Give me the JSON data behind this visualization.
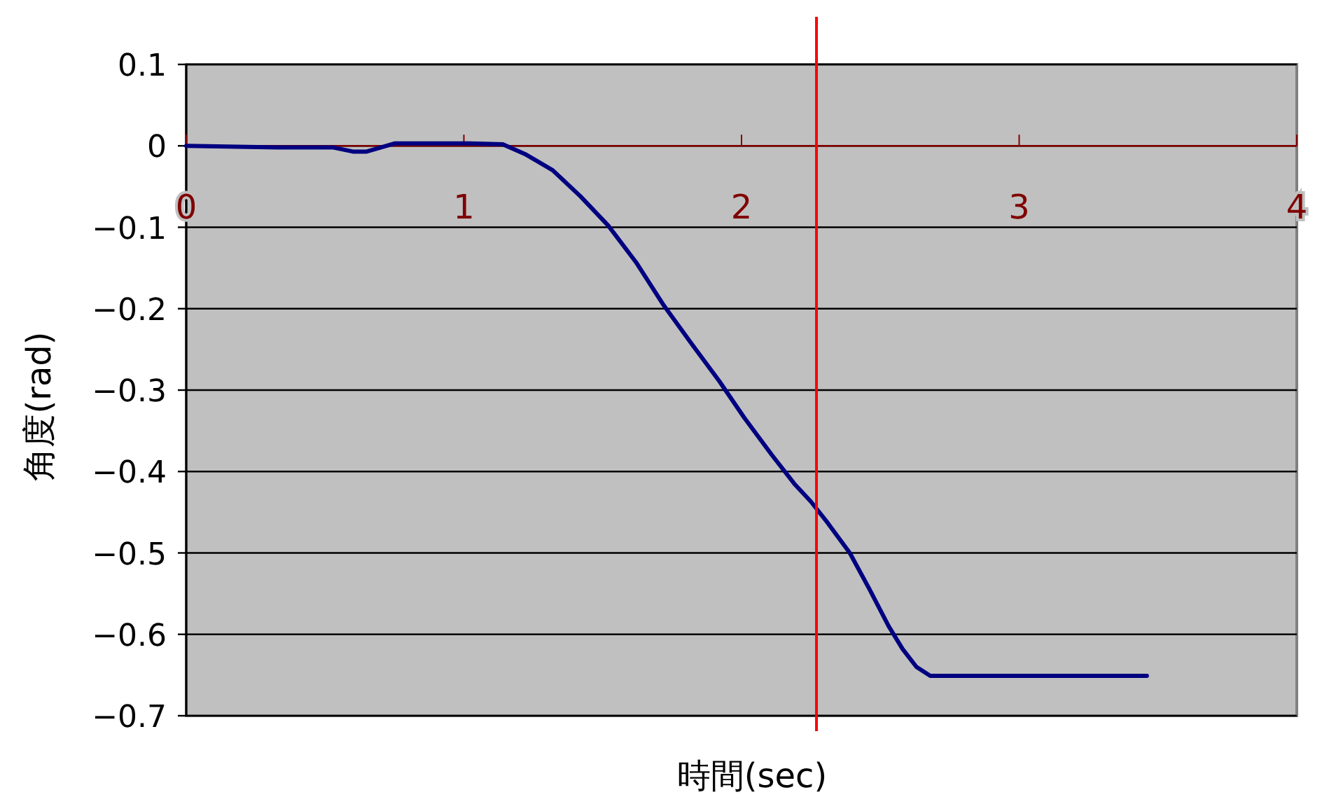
{
  "chart_data": {
    "type": "line",
    "xlabel": "時間(sec)",
    "ylabel": "角度(rad)",
    "xlim": [
      0,
      4
    ],
    "ylim": [
      -0.7,
      0.1
    ],
    "xticks": [
      0,
      1,
      2,
      3,
      4
    ],
    "yticks": [
      -0.7,
      -0.6,
      -0.5,
      -0.4,
      -0.3,
      -0.2,
      -0.1,
      0,
      0.1
    ],
    "grid": "y",
    "ref_lines": [
      {
        "axis": "x",
        "value": 2.27,
        "color": "#ff0000"
      }
    ],
    "series": [
      {
        "color": "#000080",
        "line_style": "solid",
        "marker": "none",
        "x": [
          0,
          0.33,
          0.53,
          0.6,
          0.65,
          0.75,
          0.83,
          1.02,
          1.14,
          1.22,
          1.32,
          1.42,
          1.52,
          1.62,
          1.72,
          1.82,
          1.92,
          2.01,
          2.11,
          2.19,
          2.25,
          2.31,
          2.39,
          2.46,
          2.53,
          2.58,
          2.63,
          2.68,
          2.76,
          3.46
        ],
        "values": [
          0,
          -0.002,
          -0.002,
          -0.007,
          -0.007,
          0.003,
          0.003,
          0.003,
          0.002,
          -0.01,
          -0.03,
          -0.062,
          -0.098,
          -0.143,
          -0.196,
          -0.243,
          -0.289,
          -0.334,
          -0.38,
          -0.415,
          -0.437,
          -0.463,
          -0.5,
          -0.544,
          -0.59,
          -0.618,
          -0.64,
          -0.651,
          -0.651,
          -0.651
        ]
      }
    ]
  }
}
